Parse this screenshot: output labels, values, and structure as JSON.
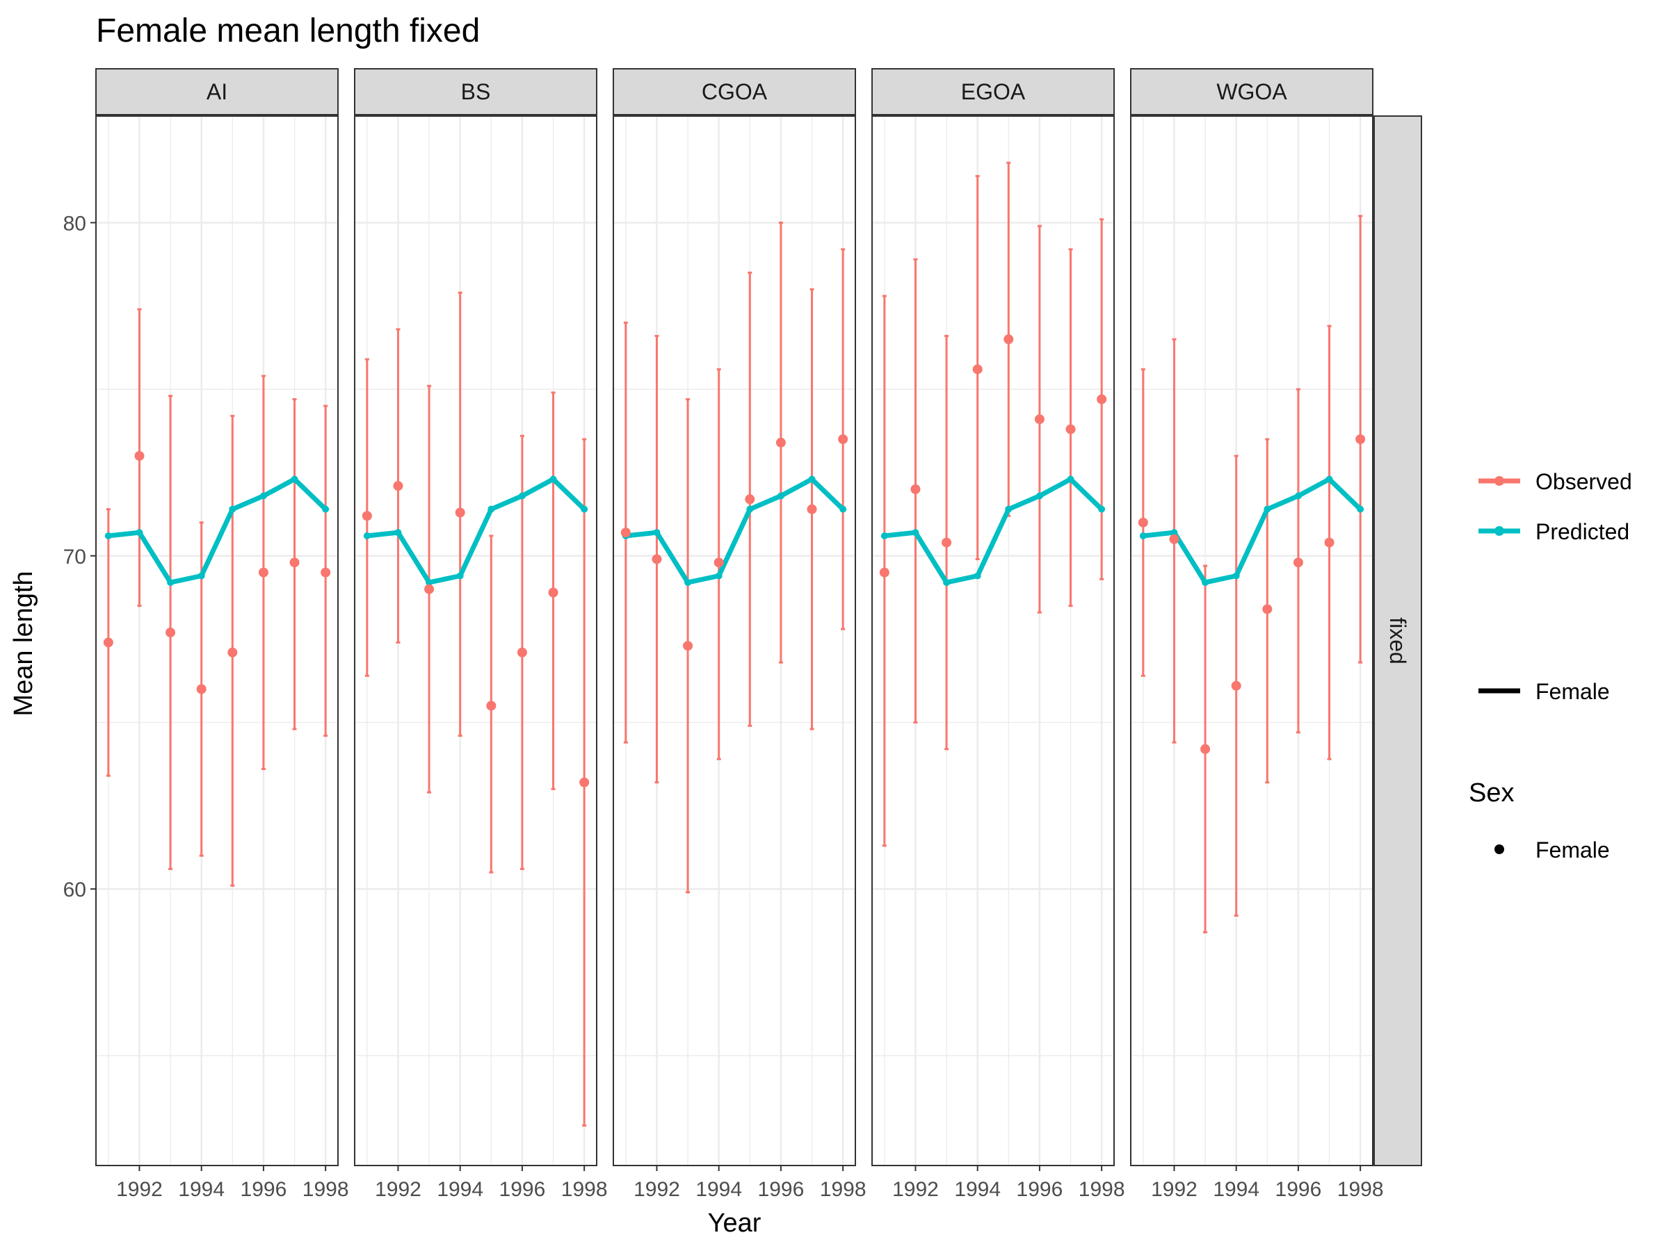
{
  "chart_data": {
    "type": "line",
    "title": "Female mean length fixed",
    "xlabel": "Year",
    "ylabel": "Mean length",
    "row_strip": "fixed",
    "xlim": [
      1990.6,
      1998.4
    ],
    "ylim": [
      51.7,
      83.2
    ],
    "x_ticks": [
      1992,
      1994,
      1996,
      1998
    ],
    "y_ticks": [
      60,
      70,
      80
    ],
    "grid": true,
    "legend_position": "right",
    "colors": {
      "observed": "#F8766D",
      "predicted": "#00BFC4",
      "strip_fill": "#D9D9D9",
      "grid": "#EBEBEB"
    },
    "x": [
      1991,
      1992,
      1993,
      1994,
      1995,
      1996,
      1997,
      1998
    ],
    "predicted": [
      70.6,
      70.7,
      69.2,
      69.4,
      71.4,
      71.8,
      72.3,
      71.4
    ],
    "panels": [
      {
        "label": "AI",
        "observed": [
          67.4,
          73.0,
          67.7,
          66.0,
          67.1,
          69.5,
          69.8,
          69.5
        ],
        "lower": [
          63.4,
          68.5,
          60.6,
          61.0,
          60.1,
          63.6,
          64.8,
          64.6
        ],
        "upper": [
          71.4,
          77.4,
          74.8,
          71.0,
          74.2,
          75.4,
          74.7,
          74.5
        ]
      },
      {
        "label": "BS",
        "observed": [
          71.2,
          72.1,
          69.0,
          71.3,
          65.5,
          67.1,
          68.9,
          63.2
        ],
        "lower": [
          66.4,
          67.4,
          62.9,
          64.6,
          60.5,
          60.6,
          63.0,
          52.9
        ],
        "upper": [
          75.9,
          76.8,
          75.1,
          77.9,
          70.6,
          73.6,
          74.9,
          73.5
        ]
      },
      {
        "label": "CGOA",
        "observed": [
          70.7,
          69.9,
          67.3,
          69.8,
          71.7,
          73.4,
          71.4,
          73.5
        ],
        "lower": [
          64.4,
          63.2,
          59.9,
          63.9,
          64.9,
          66.8,
          64.8,
          67.8
        ],
        "upper": [
          77.0,
          76.6,
          74.7,
          75.6,
          78.5,
          80.0,
          78.0,
          79.2
        ]
      },
      {
        "label": "EGOA",
        "observed": [
          69.5,
          72.0,
          70.4,
          75.6,
          76.5,
          74.1,
          73.8,
          74.7
        ],
        "lower": [
          61.3,
          65.0,
          64.2,
          69.9,
          71.2,
          68.3,
          68.5,
          69.3
        ],
        "upper": [
          77.8,
          78.9,
          76.6,
          81.4,
          81.8,
          79.9,
          79.2,
          80.1
        ]
      },
      {
        "label": "WGOA",
        "observed": [
          71.0,
          70.5,
          64.2,
          66.1,
          68.4,
          69.8,
          70.4,
          73.5
        ],
        "lower": [
          66.4,
          64.4,
          58.7,
          59.2,
          63.2,
          64.7,
          63.9,
          66.8
        ],
        "upper": [
          75.6,
          76.5,
          69.7,
          73.0,
          73.5,
          75.0,
          76.9,
          80.2
        ]
      }
    ],
    "legend": {
      "entries": [
        "Observed",
        "Predicted"
      ],
      "line_entry": "Female",
      "shape_title": "Sex",
      "shape_entry": "Female"
    }
  }
}
